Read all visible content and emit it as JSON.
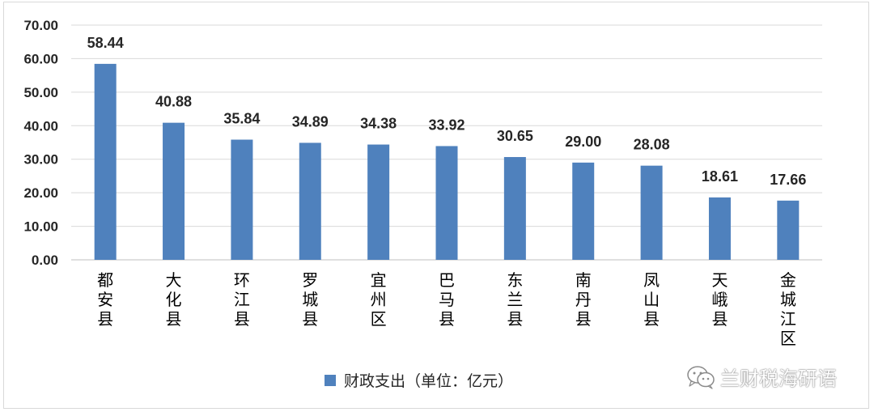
{
  "chart_data": {
    "type": "bar",
    "title": "",
    "xlabel": "",
    "ylabel": "",
    "ylim": [
      0,
      70
    ],
    "y_ticks": [
      "0.00",
      "10.00",
      "20.00",
      "30.00",
      "40.00",
      "50.00",
      "60.00",
      "70.00"
    ],
    "grid": true,
    "legend_position": "bottom",
    "categories": [
      "都安县",
      "大化县",
      "环江县",
      "罗城县",
      "宜州区",
      "巴马县",
      "东兰县",
      "南丹县",
      "凤山县",
      "天峨县",
      "金城江区"
    ],
    "series": [
      {
        "name": "财政支出（单位：亿元）",
        "color": "#4f81bd",
        "values": [
          58.44,
          40.88,
          35.84,
          34.89,
          34.38,
          33.92,
          30.65,
          29.0,
          28.08,
          18.61,
          17.66
        ],
        "labels": [
          "58.44",
          "40.88",
          "35.84",
          "34.89",
          "34.38",
          "33.92",
          "30.65",
          "29.00",
          "28.08",
          "18.61",
          "17.66"
        ]
      }
    ]
  },
  "watermark": {
    "text": "兰财税海研语",
    "icon": "wechat-icon"
  }
}
